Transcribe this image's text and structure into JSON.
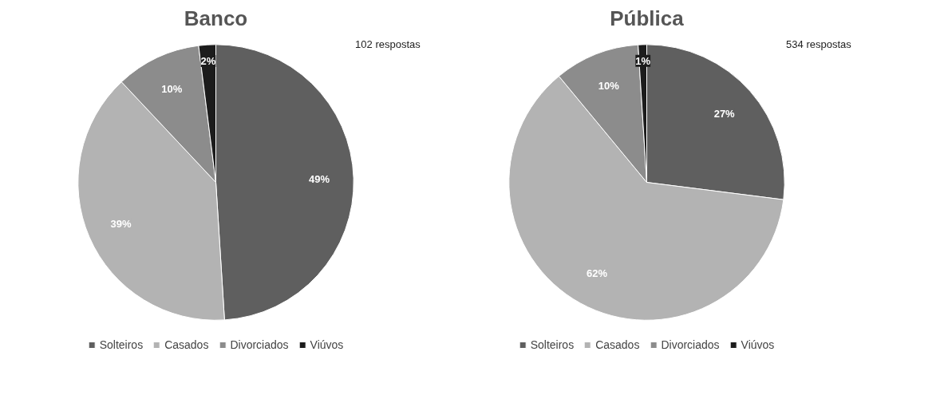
{
  "chart_data": [
    {
      "type": "pie",
      "title": "Banco",
      "annotations": [
        "102 respostas"
      ],
      "categories": [
        "Solteiros",
        "Casados",
        "Divorciados",
        "Viúvos"
      ],
      "values": [
        49,
        39,
        10,
        2
      ],
      "value_labels": [
        "49%",
        "39%",
        "10%",
        "2%"
      ],
      "colors": [
        "#5f5f5f",
        "#b3b3b3",
        "#8c8c8c",
        "#1c1c1c"
      ],
      "legend": "bottom"
    },
    {
      "type": "pie",
      "title": "Pública",
      "annotations": [
        "534 respostas"
      ],
      "categories": [
        "Solteiros",
        "Casados",
        "Divorciados",
        "Viúvos"
      ],
      "values": [
        27,
        62,
        10,
        1
      ],
      "value_labels": [
        "27%",
        "62%",
        "10%",
        "1%"
      ],
      "colors": [
        "#5f5f5f",
        "#b3b3b3",
        "#8c8c8c",
        "#1c1c1c"
      ],
      "legend": "bottom"
    }
  ]
}
